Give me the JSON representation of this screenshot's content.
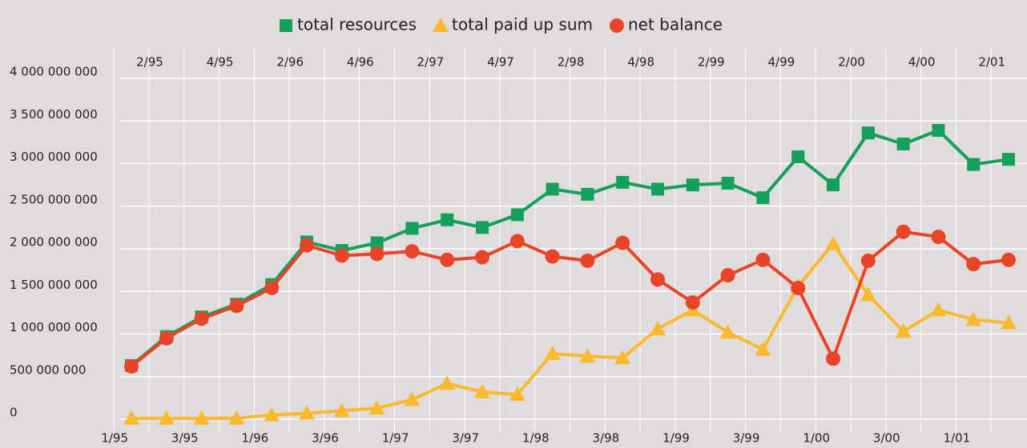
{
  "chart_data": {
    "type": "line",
    "categories": [
      "1/95",
      "2/95",
      "3/95",
      "4/95",
      "1/96",
      "2/96",
      "3/96",
      "4/96",
      "1/97",
      "2/97",
      "3/97",
      "4/97",
      "1/98",
      "2/98",
      "3/98",
      "4/98",
      "1/99",
      "2/99",
      "3/99",
      "4/99",
      "1/00",
      "2/00",
      "3/00",
      "4/00",
      "1/01",
      "2/01"
    ],
    "series": [
      {
        "name": "total resources",
        "color": "#12a05a",
        "marker": "square",
        "values": [
          630000000,
          970000000,
          1200000000,
          1350000000,
          1580000000,
          2080000000,
          1980000000,
          2070000000,
          2240000000,
          2340000000,
          2250000000,
          2400000000,
          2700000000,
          2640000000,
          2780000000,
          2700000000,
          2750000000,
          2770000000,
          2600000000,
          3080000000,
          2750000000,
          3360000000,
          3230000000,
          3390000000,
          2990000000,
          3050000000
        ]
      },
      {
        "name": "total paid up sum",
        "color": "#fbba2d",
        "marker": "triangle",
        "values": [
          10000000,
          10000000,
          10000000,
          10000000,
          50000000,
          70000000,
          100000000,
          130000000,
          230000000,
          420000000,
          320000000,
          290000000,
          770000000,
          740000000,
          720000000,
          1060000000,
          1280000000,
          1020000000,
          820000000,
          1560000000,
          2060000000,
          1460000000,
          1030000000,
          1280000000,
          1170000000,
          1130000000
        ]
      },
      {
        "name": "net balance",
        "color": "#ea4427",
        "marker": "circle",
        "values": [
          620000000,
          950000000,
          1180000000,
          1330000000,
          1540000000,
          2040000000,
          1920000000,
          1940000000,
          1970000000,
          1870000000,
          1900000000,
          2090000000,
          1910000000,
          1860000000,
          2070000000,
          1640000000,
          1370000000,
          1690000000,
          1870000000,
          1540000000,
          710000000,
          1860000000,
          2200000000,
          2140000000,
          1820000000,
          1870000000
        ]
      }
    ],
    "ylim": [
      0,
      4000000000
    ],
    "yticks": [
      0,
      {
        "value": 500000000,
        "label": "500 000 000"
      },
      {
        "value": 1000000000,
        "label": "1 000 000 000"
      },
      {
        "value": 1500000000,
        "label": "1 500 000 000"
      },
      {
        "value": 2000000000,
        "label": "2 000 000 000"
      },
      {
        "value": 2500000000,
        "label": "2 500 000 000"
      },
      {
        "value": 3000000000,
        "label": "3 000 000 000"
      },
      {
        "value": 3500000000,
        "label": "3 500 000 000"
      },
      {
        "value": 4000000000,
        "label": "4 000 000 000"
      }
    ],
    "grid": true
  }
}
